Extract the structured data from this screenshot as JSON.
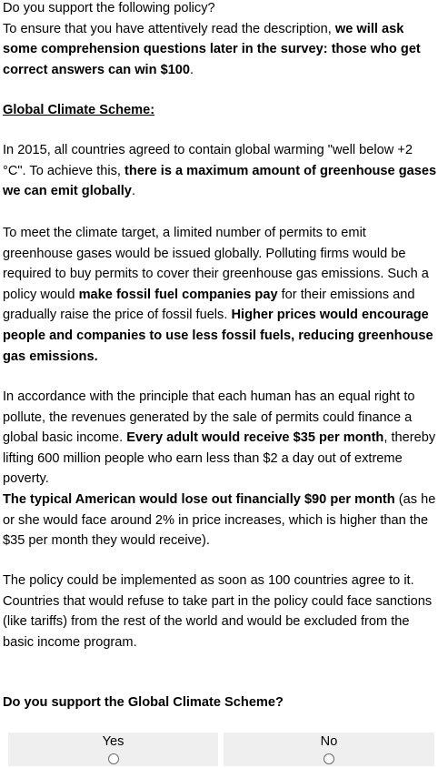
{
  "intro": {
    "line1": "Do you support the following policy?",
    "line2_plain": "To ensure that you have attentively read the description, ",
    "line2_bold": "we will ask some comprehension questions later in the survey: those who get correct answers can win $100",
    "line2_end": "."
  },
  "scheme_heading": "Global Climate Scheme:",
  "p1": {
    "t1": "In 2015, all countries agreed to contain global warming \"well below +2 °C\". To achieve this, ",
    "b1": "there is a maximum amount of greenhouse gases we can emit globally",
    "t2": "."
  },
  "p2": {
    "t1": "To meet the climate target, a limited number of permits to emit greenhouse gases would be issued globally. Polluting firms would be required to buy permits to cover their greenhouse gas emissions. Such a policy would ",
    "b1": "make fossil fuel companies pay",
    "t2": " for their emissions and gradually raise the price of fossil fuels. ",
    "b2": "Higher prices would encourage people and companies to use less fossil fuels, reducing greenhouse gas emissions."
  },
  "p3": {
    "t1": "In accordance with the principle that each human has an equal right to pollute, the revenues generated by the sale of permits could finance a global basic income. ",
    "b1": "Every adult would receive $35 per month",
    "t2": ", thereby lifting 600 million people who earn less than $2 a day out of extreme poverty.",
    "b2": "The typical American would lose out financially $90 per month",
    "t3": " (as he or she would face around 2% in price increases, which is higher than the $35 per month they would receive)."
  },
  "p4": "The policy could be implemented as soon as 100 countries agree to it. Countries that would refuse to take part in the policy could face sanctions (like tariffs) from the rest of the world and would be excluded from the basic income program.",
  "question": "Do you support the Global Climate Scheme?",
  "choices": {
    "yes": "Yes",
    "no": "No"
  }
}
